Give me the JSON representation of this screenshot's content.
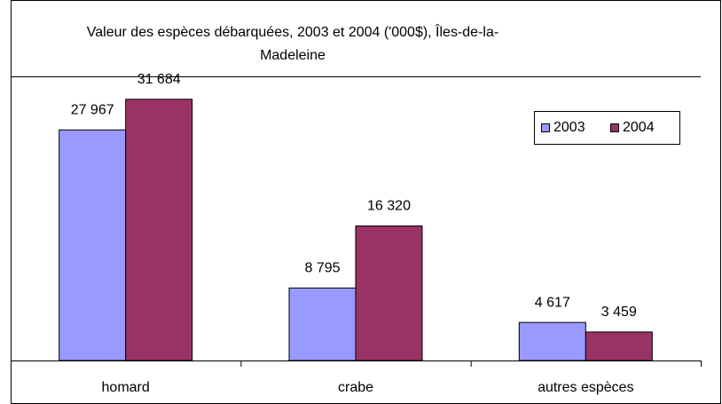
{
  "chart_data": {
    "type": "bar",
    "title": "Valeur des espèces débarquées, 2003 et 2004 ('000$), Îles-de-la-Madeleine",
    "categories": [
      "homard",
      "crabe",
      "autres espèces"
    ],
    "series": [
      {
        "name": "2003",
        "color": "#9999ff",
        "values": [
          27967,
          8795,
          4617
        ],
        "value_labels": [
          "27 967",
          "8 795",
          "4 617"
        ]
      },
      {
        "name": "2004",
        "color": "#993366",
        "values": [
          31684,
          16320,
          3459
        ],
        "value_labels": [
          "31 684",
          "16 320",
          "3 459"
        ]
      }
    ],
    "ylim": [
      0,
      35000
    ],
    "legend": "top-right"
  }
}
